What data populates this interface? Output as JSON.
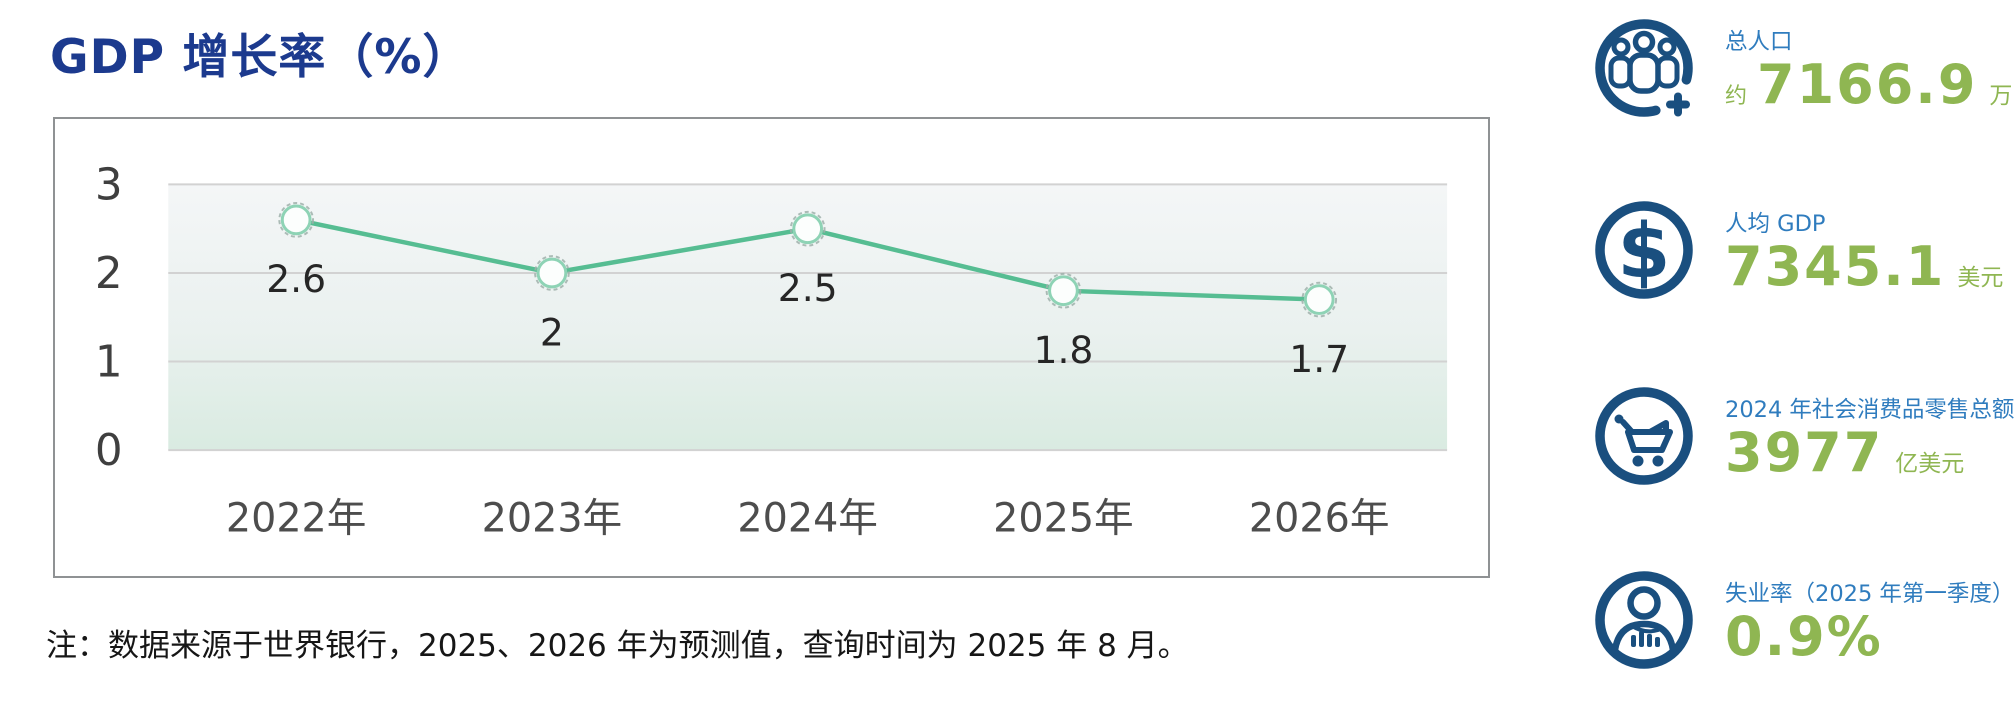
{
  "title": "GDP 增长率（%）",
  "note": "注：数据来源于世界银行，2025、2026 年为预测值，查询时间为 2025 年 8 月。",
  "colors": {
    "title_blue": "#1c3a8e",
    "stat_label_blue": "#2f7cbe",
    "stat_value_green": "#8fb652",
    "icon_blue": "#1a4f7f",
    "line_green": "#56bd92",
    "marker_fill": "#fcfefd",
    "marker_stroke": "#8ed3b5",
    "marker_dash_ring": "#9fb0aa",
    "grid_line": "#d2d2d2",
    "axis_text": "#3f3f3f",
    "xlabel_text": "#4d4d4d",
    "data_label_text": "#262626",
    "plot_bg_top": "#f4f6f7",
    "plot_bg_mid": "#eaf1ef",
    "plot_bg_bottom": "#d9ebe1",
    "chart_border": "#8f9294"
  },
  "chart_data": {
    "type": "line",
    "title": "GDP 增长率（%）",
    "categories": [
      "2022年",
      "2023年",
      "2024年",
      "2025年",
      "2026年"
    ],
    "series": [
      {
        "name": "GDP 增长率",
        "values": [
          2.6,
          2,
          2.5,
          1.8,
          1.7
        ]
      }
    ],
    "data_labels": [
      "2.6",
      "2",
      "2.5",
      "1.8",
      "1.7"
    ],
    "xlabel": "",
    "ylabel": "",
    "ylim": [
      0,
      3
    ],
    "yticks": [
      0,
      1,
      2,
      3
    ],
    "grid": true,
    "legend_position": "none"
  },
  "stats": [
    {
      "icon": "people-group-icon",
      "label": "总人口",
      "prefix": "约",
      "value": "7166.9",
      "unit": "万"
    },
    {
      "icon": "dollar-icon",
      "label": "人均 GDP",
      "prefix": "",
      "value": "7345.1",
      "unit": "美元"
    },
    {
      "icon": "shopping-cart-icon",
      "label": "2024 年社会消费品零售总额",
      "prefix": "",
      "value": "3977",
      "unit": "亿美元"
    },
    {
      "icon": "person-stats-icon",
      "label": "失业率（2025 年第一季度）",
      "prefix": "",
      "value": "0.9%",
      "unit": ""
    }
  ]
}
